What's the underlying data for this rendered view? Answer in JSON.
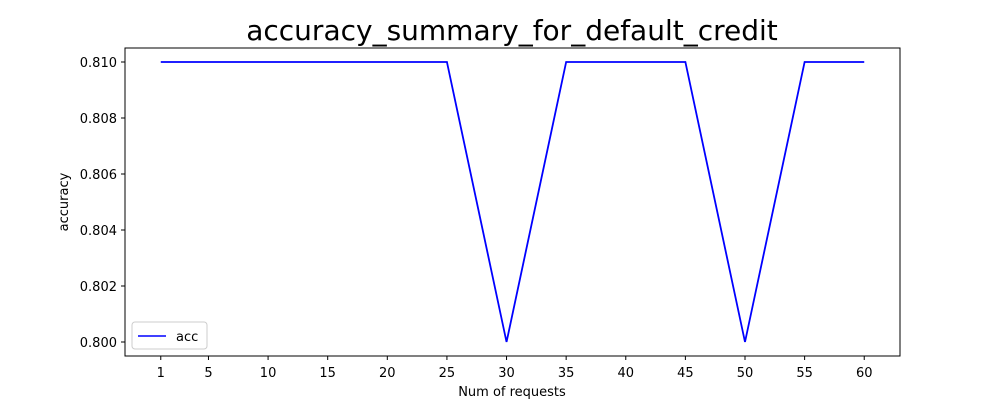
{
  "chart_data": {
    "type": "line",
    "title": "accuracy_summary_for_default_credit",
    "xlabel": "Num of requests",
    "ylabel": "accuracy",
    "xlim": [
      -2,
      63
    ],
    "ylim": [
      0.7995,
      0.8105
    ],
    "x_ticks": [
      1,
      5,
      10,
      15,
      20,
      25,
      30,
      35,
      40,
      45,
      50,
      55,
      60
    ],
    "y_ticks": [
      0.8,
      0.802,
      0.804,
      0.806,
      0.808,
      0.81
    ],
    "y_tick_labels": [
      "0.800",
      "0.802",
      "0.804",
      "0.806",
      "0.808",
      "0.810"
    ],
    "grid": false,
    "legend_position": "lower-left",
    "series": [
      {
        "name": "acc",
        "color": "#0000ff",
        "x": [
          1,
          5,
          10,
          15,
          20,
          25,
          30,
          35,
          40,
          45,
          50,
          55,
          60
        ],
        "y": [
          0.81,
          0.81,
          0.81,
          0.81,
          0.81,
          0.81,
          0.8,
          0.81,
          0.81,
          0.81,
          0.8,
          0.81,
          0.81
        ]
      }
    ]
  }
}
